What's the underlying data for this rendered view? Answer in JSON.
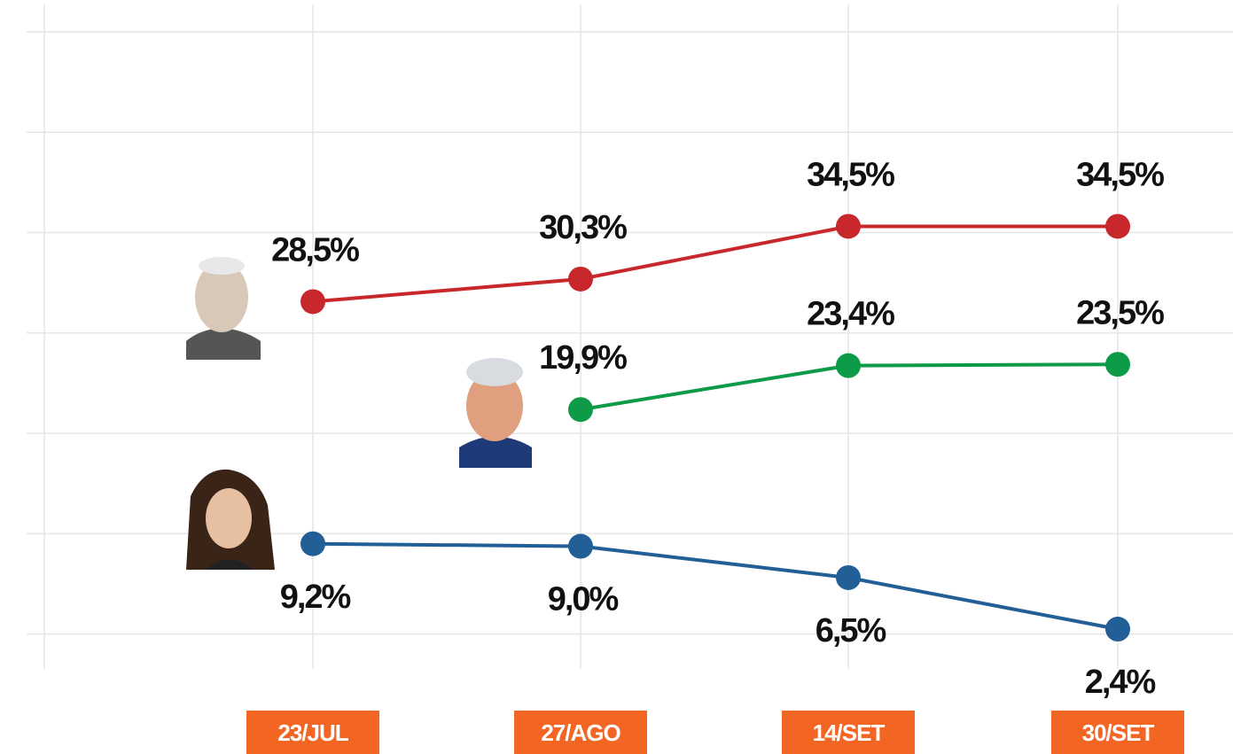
{
  "chart_data": {
    "type": "line",
    "categories": [
      "23/JUL",
      "27/AGO",
      "14/SET",
      "30/SET"
    ],
    "series": [
      {
        "color": "#c8282b",
        "values": [
          28.5,
          30.3,
          34.5,
          34.5
        ],
        "value_labels": [
          "28,5%",
          "30,3%",
          "34,5%",
          "34,5%"
        ]
      },
      {
        "color": "#0d9b48",
        "values": [
          null,
          19.9,
          23.4,
          23.5
        ],
        "value_labels": [
          null,
          "19,9%",
          "23,4%",
          "23,5%"
        ]
      },
      {
        "color": "#235f97",
        "values": [
          9.2,
          9.0,
          6.5,
          2.4
        ],
        "value_labels": [
          "9,2%",
          "9,0%",
          "6,5%",
          "2,4%"
        ]
      }
    ],
    "ylim": [
      0,
      50
    ],
    "yticks": [
      2,
      10,
      18,
      26,
      34,
      42,
      50
    ],
    "grid": true,
    "category_color": "#f26522"
  }
}
